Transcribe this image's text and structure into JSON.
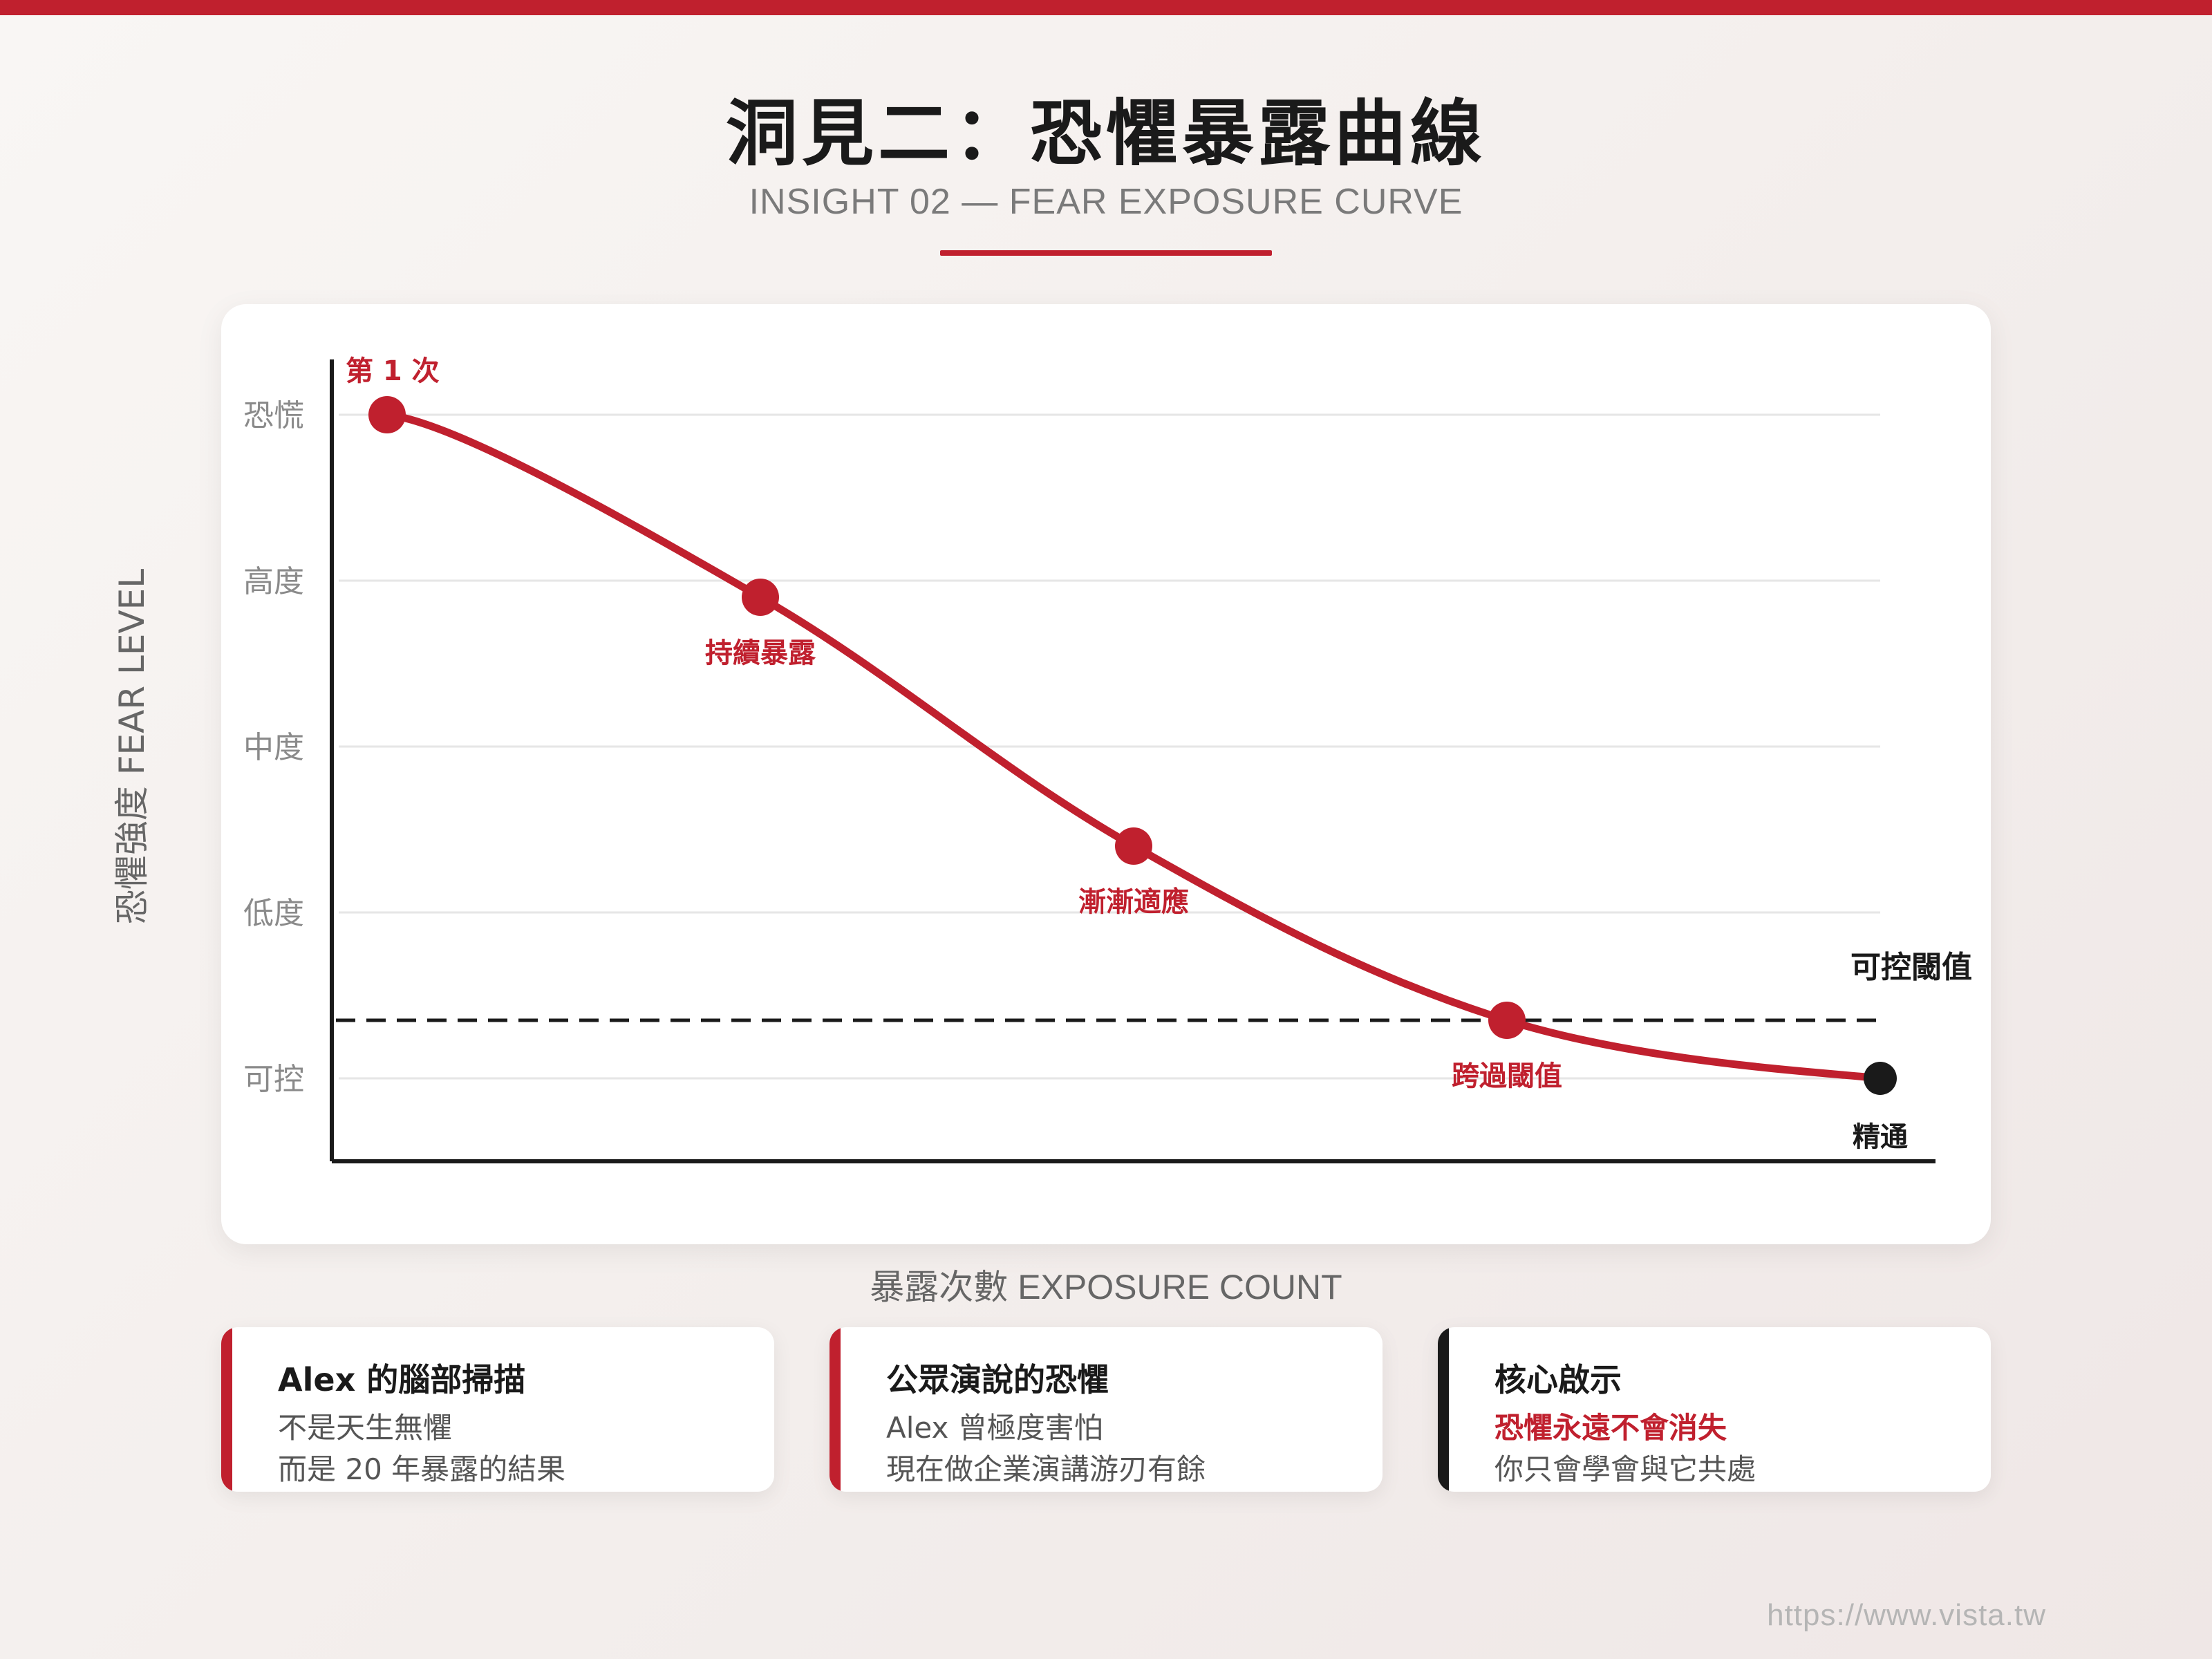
{
  "header": {
    "title": "洞見二：恐懼暴露曲線",
    "subtitle": "INSIGHT 02 — FEAR EXPOSURE CURVE"
  },
  "colors": {
    "accent": "#c0202e",
    "dark": "#1a1a1a",
    "muted": "#7a7a7a"
  },
  "chart_data": {
    "type": "line",
    "xlabel": "暴露次數 EXPOSURE COUNT",
    "ylabel": "恐懼強度 FEAR LEVEL",
    "ylim": [
      0,
      4
    ],
    "y_categories": [
      "可控",
      "低度",
      "中度",
      "高度",
      "恐慌"
    ],
    "grid": true,
    "series": [
      {
        "points": [
          {
            "x": 0,
            "y": 4.0,
            "label": "第 1 次"
          },
          {
            "x": 1,
            "y": 2.9,
            "label": "持續暴露"
          },
          {
            "x": 2,
            "y": 1.4,
            "label": "漸漸適應"
          },
          {
            "x": 3,
            "y": 0.35,
            "label": "跨過閾值"
          },
          {
            "x": 4,
            "y": 0.0,
            "label": "精通"
          }
        ]
      }
    ],
    "threshold": {
      "y": 0.35,
      "label": "可控閾值"
    }
  },
  "panels": [
    {
      "title": "Alex 的腦部掃描",
      "line1": "不是天生無懼",
      "line2": "而是 20 年暴露的結果",
      "accent": "#c0202e"
    },
    {
      "title": "公眾演說的恐懼",
      "line1": "Alex 曾極度害怕",
      "line2": "現在做企業演講游刃有餘",
      "accent": "#c0202e"
    },
    {
      "title": "核心啟示",
      "line1": "恐懼永遠不會消失",
      "line2": "你只會學會與它共處",
      "accent": "#1a1a1a"
    }
  ],
  "footer": {
    "url": "https://www.vista.tw"
  }
}
